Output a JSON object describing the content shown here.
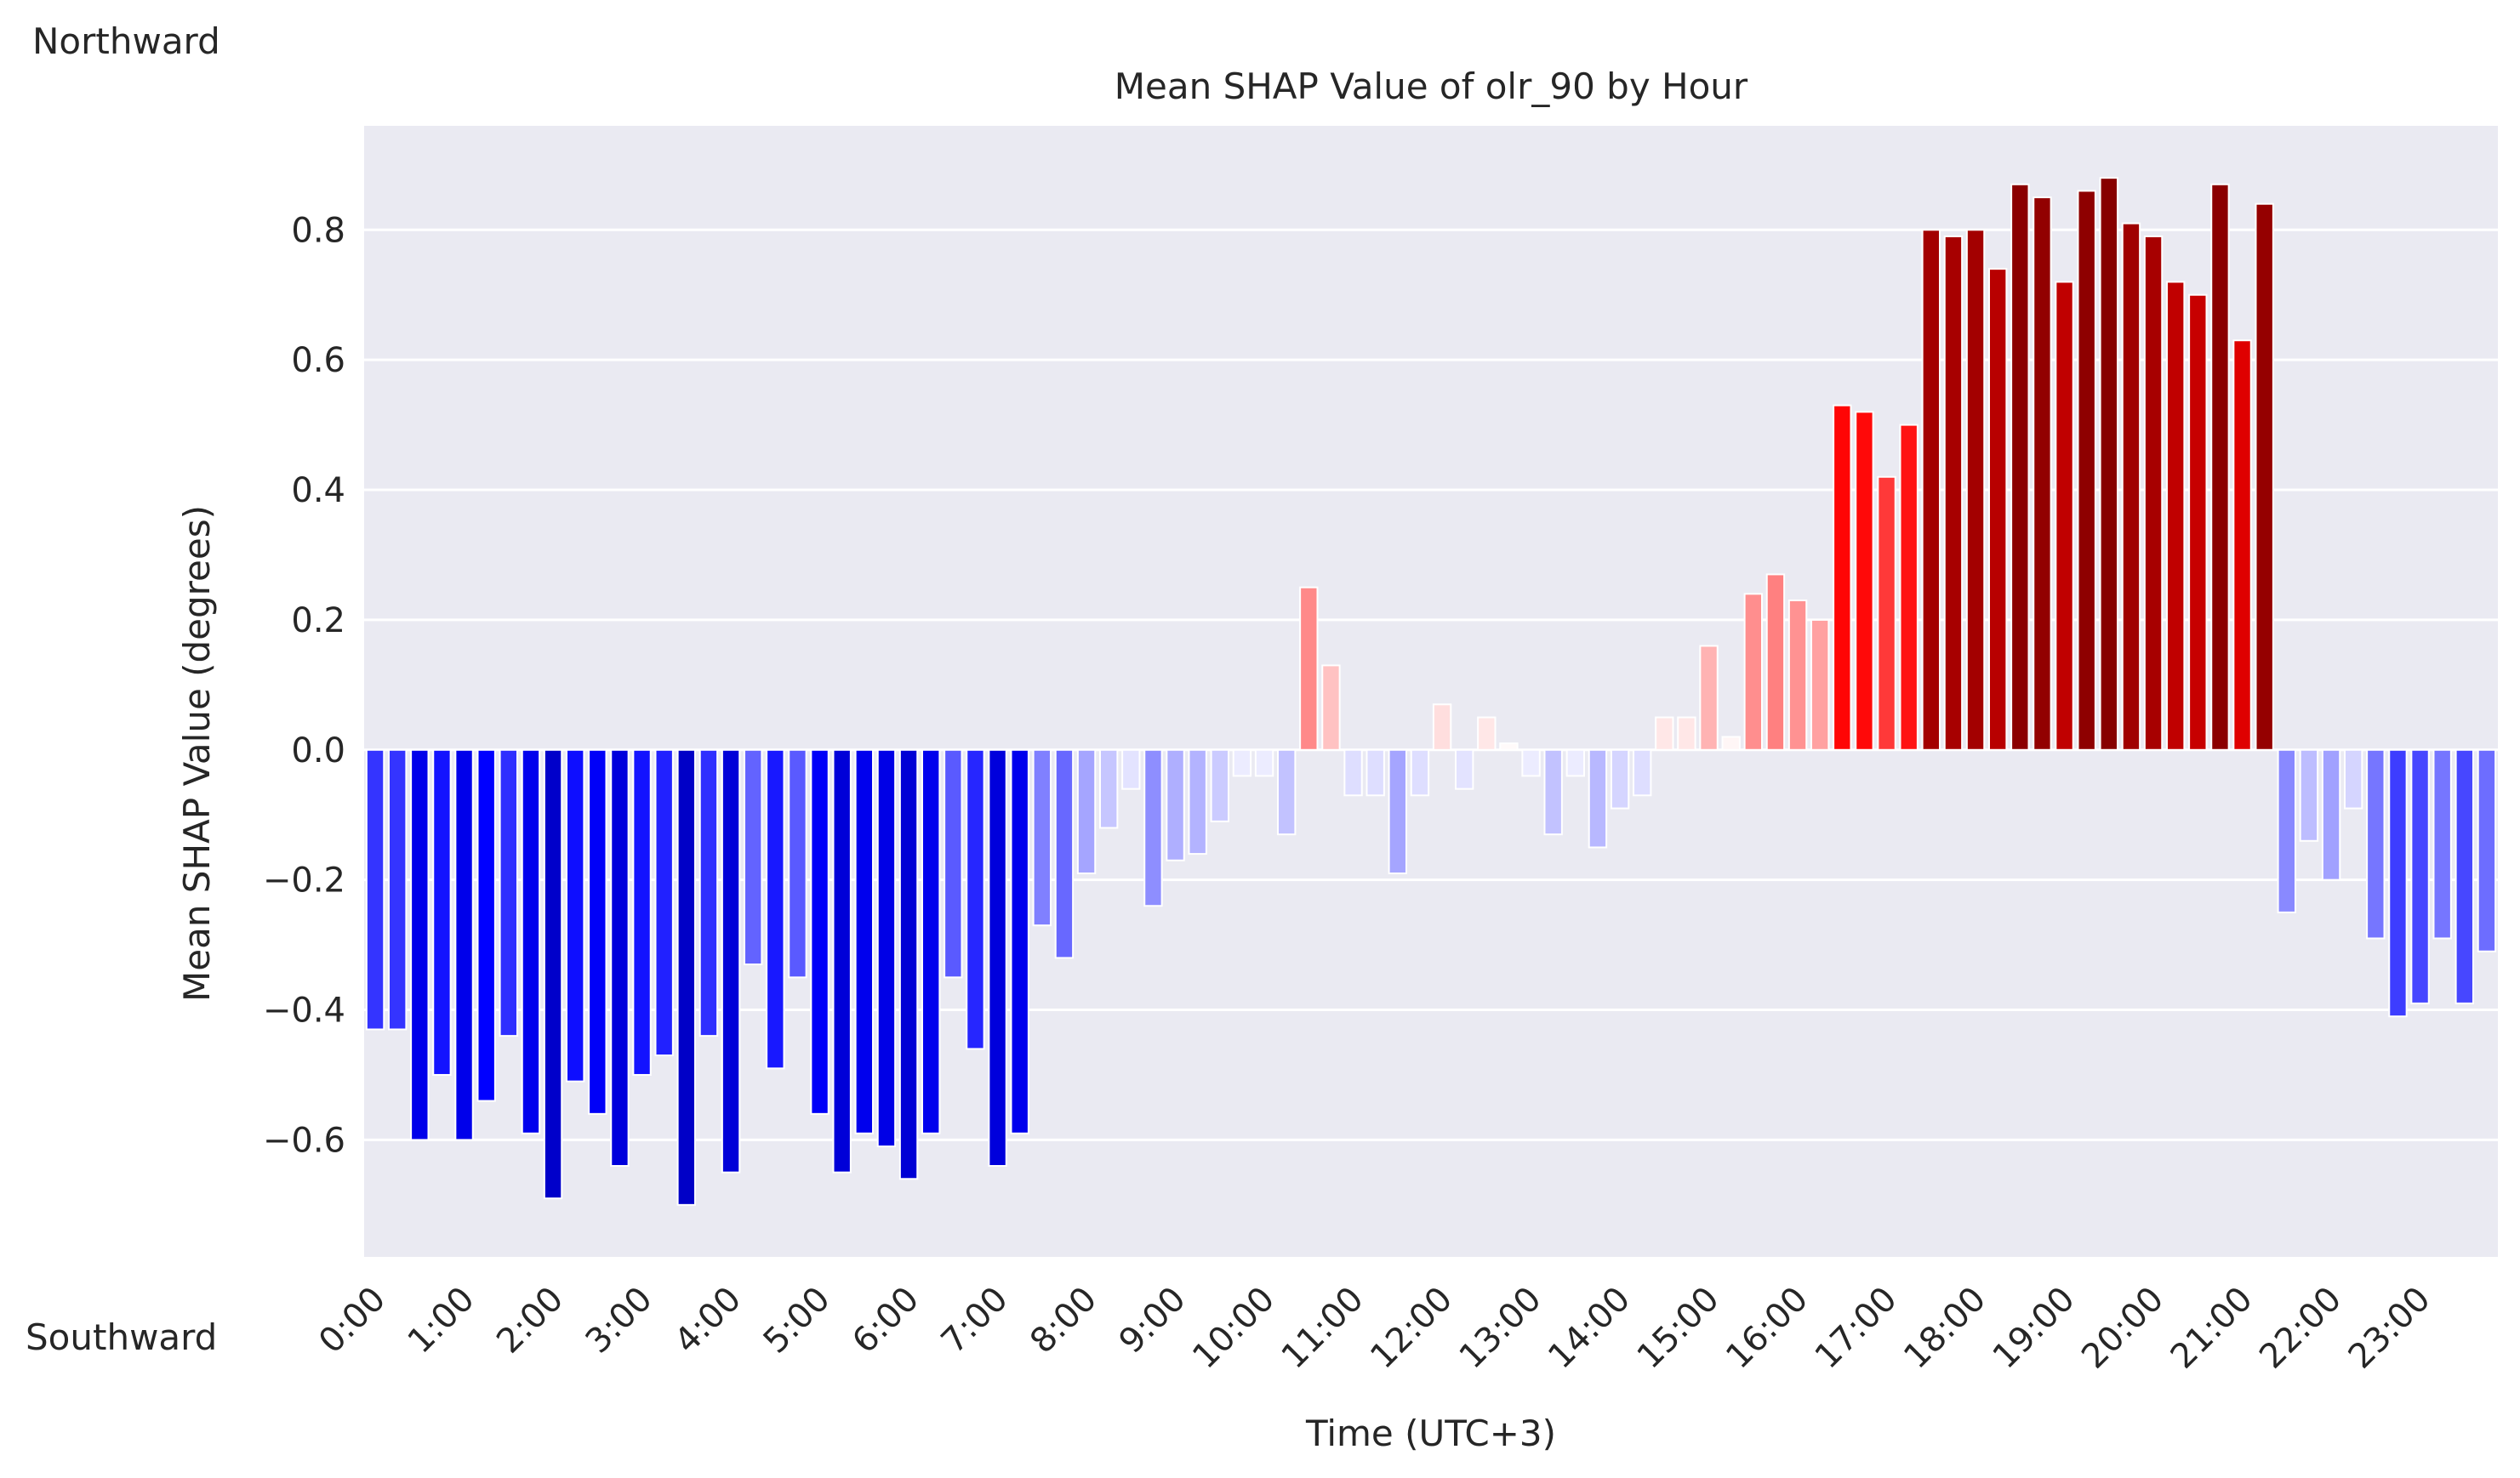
{
  "annotations": {
    "top": "Northward",
    "bottom": "Southward"
  },
  "colors": {
    "plot_bg": "#EAEAF2",
    "grid": "#FFFFFF",
    "negative": "#0000FF",
    "positive": "#FF0000",
    "dark_negative": "#000080",
    "dark_positive": "#800000"
  },
  "chart_data": {
    "type": "bar",
    "title": "Mean SHAP Value of olr_90 by Hour",
    "xlabel": "Time (UTC+3)",
    "ylabel": "Mean SHAP Value (degrees)",
    "ylim": [
      -0.78,
      0.96
    ],
    "yticks": [
      -0.6,
      -0.4,
      -0.2,
      0.0,
      0.2,
      0.4,
      0.6,
      0.8
    ],
    "ytick_labels": [
      "−0.6",
      "−0.4",
      "−0.2",
      "0.0",
      "0.2",
      "0.4",
      "0.6",
      "0.8"
    ],
    "xtick_labels": [
      "0:00",
      "1:00",
      "2:00",
      "3:00",
      "4:00",
      "5:00",
      "6:00",
      "7:00",
      "8:00",
      "9:00",
      "10:00",
      "11:00",
      "12:00",
      "13:00",
      "14:00",
      "15:00",
      "16:00",
      "17:00",
      "18:00",
      "19:00",
      "20:00",
      "21:00",
      "22:00",
      "23:00"
    ],
    "bars_per_hour": 4,
    "grid": true,
    "values": [
      -0.43,
      -0.43,
      -0.6,
      -0.5,
      -0.6,
      -0.54,
      -0.44,
      -0.59,
      -0.69,
      -0.51,
      -0.56,
      -0.64,
      -0.5,
      -0.47,
      -0.7,
      -0.44,
      -0.65,
      -0.33,
      -0.49,
      -0.35,
      -0.56,
      -0.65,
      -0.59,
      -0.61,
      -0.66,
      -0.59,
      -0.35,
      -0.46,
      -0.64,
      -0.59,
      -0.27,
      -0.32,
      -0.19,
      -0.12,
      -0.06,
      -0.24,
      -0.17,
      -0.16,
      -0.11,
      -0.04,
      -0.04,
      -0.13,
      0.25,
      0.13,
      -0.07,
      -0.07,
      -0.19,
      -0.07,
      0.07,
      -0.06,
      0.05,
      0.01,
      -0.04,
      -0.13,
      -0.04,
      -0.15,
      -0.09,
      -0.07,
      0.05,
      0.05,
      0.16,
      0.02,
      0.24,
      0.27,
      0.23,
      0.2,
      0.53,
      0.52,
      0.42,
      0.5,
      0.8,
      0.79,
      0.8,
      0.74,
      0.87,
      0.85,
      0.72,
      0.86,
      0.88,
      0.81,
      0.79,
      0.72,
      0.7,
      0.87,
      0.63,
      0.84,
      -0.25,
      -0.14,
      -0.2,
      -0.09,
      -0.29,
      -0.41,
      -0.39,
      -0.29,
      -0.39,
      -0.31
    ]
  }
}
